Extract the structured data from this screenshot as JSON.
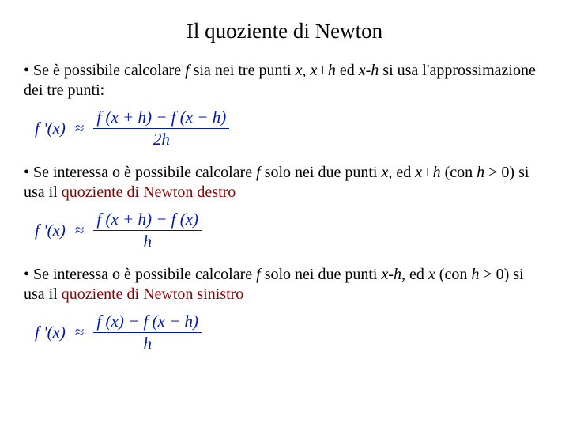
{
  "title": "Il quoziente di Newton",
  "bullets": {
    "b1_pre": "• Se è possibile calcolare ",
    "b1_f": "f",
    "b1_mid1": " sia nei tre punti ",
    "b1_x": "x",
    "b1_c1": ", ",
    "b1_xph": "x+h",
    "b1_mid2": " ed ",
    "b1_xmh": "x-h",
    "b1_post": " si usa l'approssimazione dei tre punti:",
    "b2_pre": "• Se interessa o è possibile calcolare ",
    "b2_f": "f",
    "b2_mid1": "  solo nei due punti ",
    "b2_x": "x",
    "b2_c1": ", ed ",
    "b2_xph": "x+h",
    "b2_mid2": " (con ",
    "b2_h": "h",
    "b2_mid3": " > 0) si usa il ",
    "b2_term": "quoziente di Newton destro",
    "b3_pre": "• Se interessa o è possibile calcolare ",
    "b3_f": "f",
    "b3_mid1": "  solo nei due punti ",
    "b3_xmh": "x-h",
    "b3_c1": ", ed ",
    "b3_x": "x",
    "b3_mid2": " (con ",
    "b3_h": "h",
    "b3_mid3": " > 0) si usa il ",
    "b3_term": "quoziente di Newton sinistro"
  },
  "formulas": {
    "lhs": "f '(x)",
    "approx": "≈",
    "f1_num": "f (x + h) − f (x − h)",
    "f1_den": "2h",
    "f2_num": "f (x + h) − f (x)",
    "f2_den": "h",
    "f3_num": "f (x) − f (x − h)",
    "f3_den": "h"
  },
  "colors": {
    "formula": "#0018b0",
    "term": "#8a0000",
    "text": "#000000",
    "background": "#ffffff"
  },
  "typography": {
    "title_fontsize": 27,
    "body_fontsize": 20,
    "formula_fontsize": 21,
    "font_family": "Times New Roman"
  }
}
